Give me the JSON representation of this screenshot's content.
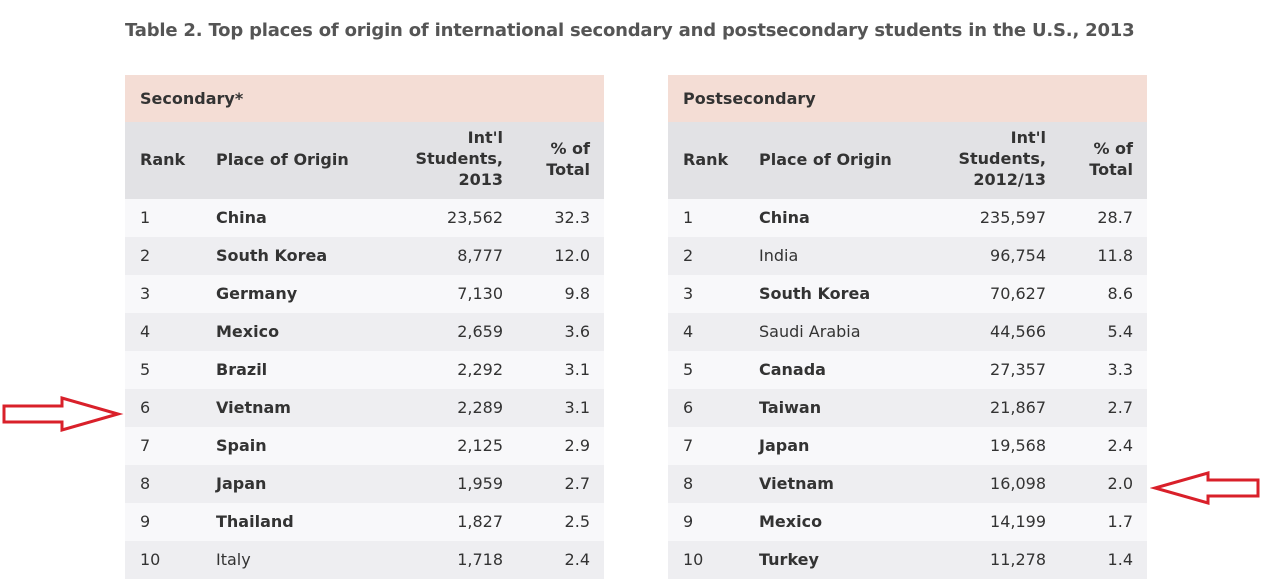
{
  "title": "Table 2. Top places of origin of international secondary and postsecondary students in the U.S., 2013",
  "colors": {
    "section_header": "#f4ddd5",
    "column_header": "#e2e2e5",
    "arrow": "#d9202a"
  },
  "tables": [
    {
      "section": "Secondary*",
      "headers": [
        "Rank",
        "Place of Origin",
        "Int'l\nStudents,\n2013",
        "% of\nTotal"
      ],
      "rows": [
        {
          "rank": "1",
          "place": "China",
          "students": "23,562",
          "pct": "32.3",
          "bold": true
        },
        {
          "rank": "2",
          "place": "South Korea",
          "students": "8,777",
          "pct": "12.0",
          "bold": true
        },
        {
          "rank": "3",
          "place": "Germany",
          "students": "7,130",
          "pct": "9.8",
          "bold": true
        },
        {
          "rank": "4",
          "place": "Mexico",
          "students": "2,659",
          "pct": "3.6",
          "bold": true
        },
        {
          "rank": "5",
          "place": "Brazil",
          "students": "2,292",
          "pct": "3.1",
          "bold": true
        },
        {
          "rank": "6",
          "place": "Vietnam",
          "students": "2,289",
          "pct": "3.1",
          "bold": true
        },
        {
          "rank": "7",
          "place": "Spain",
          "students": "2,125",
          "pct": "2.9",
          "bold": true
        },
        {
          "rank": "8",
          "place": "Japan",
          "students": "1,959",
          "pct": "2.7",
          "bold": true
        },
        {
          "rank": "9",
          "place": "Thailand",
          "students": "1,827",
          "pct": "2.5",
          "bold": true
        },
        {
          "rank": "10",
          "place": "Italy",
          "students": "1,718",
          "pct": "2.4",
          "bold": false
        }
      ]
    },
    {
      "section": "Postsecondary",
      "headers": [
        "Rank",
        "Place of Origin",
        "Int'l\nStudents,\n2012/13",
        "% of\nTotal"
      ],
      "rows": [
        {
          "rank": "1",
          "place": "China",
          "students": "235,597",
          "pct": "28.7",
          "bold": true
        },
        {
          "rank": "2",
          "place": "India",
          "students": "96,754",
          "pct": "11.8",
          "bold": false
        },
        {
          "rank": "3",
          "place": "South Korea",
          "students": "70,627",
          "pct": "8.6",
          "bold": true
        },
        {
          "rank": "4",
          "place": "Saudi Arabia",
          "students": "44,566",
          "pct": "5.4",
          "bold": false
        },
        {
          "rank": "5",
          "place": "Canada",
          "students": "27,357",
          "pct": "3.3",
          "bold": true
        },
        {
          "rank": "6",
          "place": "Taiwan",
          "students": "21,867",
          "pct": "2.7",
          "bold": true
        },
        {
          "rank": "7",
          "place": "Japan",
          "students": "19,568",
          "pct": "2.4",
          "bold": true
        },
        {
          "rank": "8",
          "place": "Vietnam",
          "students": "16,098",
          "pct": "2.0",
          "bold": true
        },
        {
          "rank": "9",
          "place": "Mexico",
          "students": "14,199",
          "pct": "1.7",
          "bold": true
        },
        {
          "rank": "10",
          "place": "Turkey",
          "students": "11,278",
          "pct": "1.4",
          "bold": true
        }
      ]
    }
  ]
}
